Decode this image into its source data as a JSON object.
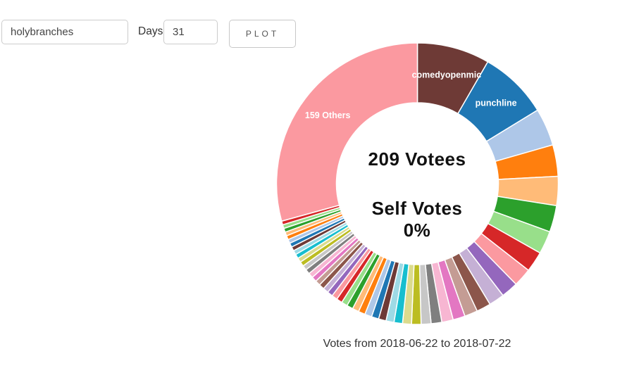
{
  "controls": {
    "username": {
      "value": "holybranches"
    },
    "days_label": "Days",
    "days": {
      "value": "31"
    },
    "plot_button_label": "PLOT"
  },
  "chart_data": {
    "type": "pie",
    "subtype": "donut",
    "title": "Votes from 2018-06-22 to 2018-07-22",
    "center": {
      "line1": "209 Votees",
      "line2": "Self Votes",
      "line3": "0%"
    },
    "total_votees": 209,
    "self_votes_percent": "0%",
    "others_count": 159,
    "labeled_segments": [
      "comedyopenmic",
      "punchline",
      "159 Others"
    ],
    "start_angle_deg": 0,
    "direction": "clockwise",
    "palette": [
      "#6e3a36",
      "#1f77b4",
      "#aec7e8",
      "#ff7f0e",
      "#ffbb78",
      "#2ca02c",
      "#98df8a",
      "#d62728",
      "#fb99a0",
      "#9467bd",
      "#c5b0d5",
      "#8c564b",
      "#c49c94",
      "#e377c2",
      "#f7b6d2",
      "#7f7f7f",
      "#c7c7c7",
      "#bcbd22",
      "#dbdb8d",
      "#17becf",
      "#9edae5"
    ],
    "segments": [
      {
        "deg": 30.0,
        "color": 0,
        "label": "comedyopenmic"
      },
      {
        "deg": 28.5,
        "color": 1,
        "label": "punchline"
      },
      {
        "deg": 15.5,
        "color": 2
      },
      {
        "deg": 13.0,
        "color": 3
      },
      {
        "deg": 12.0,
        "color": 4
      },
      {
        "deg": 11.0,
        "color": 5
      },
      {
        "deg": 9.5,
        "color": 6
      },
      {
        "deg": 8.5,
        "color": 7
      },
      {
        "deg": 7.6,
        "color": 8
      },
      {
        "deg": 7.0,
        "color": 9
      },
      {
        "deg": 6.4,
        "color": 10
      },
      {
        "deg": 5.9,
        "color": 11
      },
      {
        "deg": 5.4,
        "color": 12
      },
      {
        "deg": 5.0,
        "color": 13
      },
      {
        "deg": 4.7,
        "color": 14
      },
      {
        "deg": 4.4,
        "color": 15
      },
      {
        "deg": 4.1,
        "color": 16
      },
      {
        "deg": 3.9,
        "color": 17
      },
      {
        "deg": 3.7,
        "color": 18
      },
      {
        "deg": 3.5,
        "color": 19
      },
      {
        "deg": 3.3,
        "color": 20
      },
      {
        "deg": 3.1,
        "color": 0
      },
      {
        "deg": 3.0,
        "color": 1
      },
      {
        "deg": 2.9,
        "color": 2
      },
      {
        "deg": 2.8,
        "color": 3
      },
      {
        "deg": 2.7,
        "color": 4
      },
      {
        "deg": 2.6,
        "color": 5
      },
      {
        "deg": 2.5,
        "color": 6
      },
      {
        "deg": 2.4,
        "color": 7
      },
      {
        "deg": 2.35,
        "color": 8
      },
      {
        "deg": 2.3,
        "color": 9
      },
      {
        "deg": 2.25,
        "color": 10
      },
      {
        "deg": 2.2,
        "color": 11
      },
      {
        "deg": 2.15,
        "color": 12
      },
      {
        "deg": 2.1,
        "color": 13
      },
      {
        "deg": 2.05,
        "color": 14
      },
      {
        "deg": 2.0,
        "color": 15
      },
      {
        "deg": 1.95,
        "color": 16
      },
      {
        "deg": 1.9,
        "color": 17
      },
      {
        "deg": 1.85,
        "color": 18
      },
      {
        "deg": 1.8,
        "color": 19
      },
      {
        "deg": 1.75,
        "color": 20
      },
      {
        "deg": 1.7,
        "color": 0
      },
      {
        "deg": 1.7,
        "color": 1
      },
      {
        "deg": 1.65,
        "color": 2
      },
      {
        "deg": 1.65,
        "color": 3
      },
      {
        "deg": 1.6,
        "color": 4
      },
      {
        "deg": 1.6,
        "color": 5
      },
      {
        "deg": 1.55,
        "color": 6
      },
      {
        "deg": 1.55,
        "color": 7
      },
      {
        "deg": 105.45,
        "color": 8,
        "label": "159 Others"
      }
    ]
  }
}
